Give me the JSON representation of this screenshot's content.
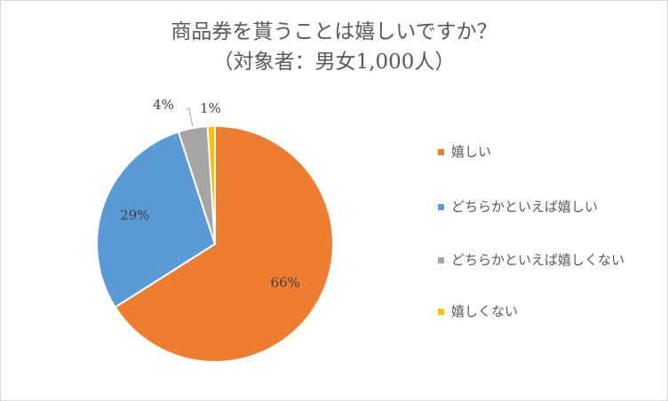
{
  "title": {
    "line1": "商品券を貰うことは嬉しいですか？",
    "line2": "（対象者：男女1,000人）"
  },
  "chart_data": {
    "type": "pie",
    "title": "商品券を貰うことは嬉しいですか？（対象者：男女1,000人）",
    "categories": [
      "嬉しい",
      "どちらかといえば嬉しい",
      "どちらかといえば嬉しくない",
      "嬉しくない"
    ],
    "values": [
      66,
      29,
      4,
      1
    ],
    "data_labels": [
      "66%",
      "29%",
      "4%",
      "1%"
    ],
    "colors": [
      "#ed7d31",
      "#5b9bd5",
      "#a5a5a5",
      "#ffc000"
    ],
    "start": "12 o'clock, clockwise",
    "legend_position": "right"
  }
}
